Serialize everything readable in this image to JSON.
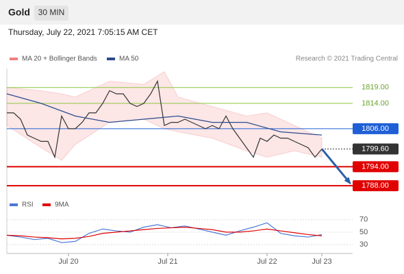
{
  "header": {
    "title": "Gold",
    "timeframe": "30 MIN",
    "datetime": "Thursday, July 22, 2021 7:05:15 AM CET",
    "credit": "Research © 2021 Trading Central"
  },
  "chart_data": [
    {
      "type": "line",
      "xlim": [
        0,
        50.5
      ],
      "ylim": [
        1785,
        1825
      ],
      "xticks": [
        {
          "value": 9,
          "label": "Jul 20"
        },
        {
          "value": 23.5,
          "label": "Jul 21"
        },
        {
          "value": 38,
          "label": "Jul 22"
        },
        {
          "value": 46,
          "label": "Jul 23"
        }
      ],
      "bands": {
        "name": "MA 20 + Bollinger Bands",
        "color": "#f08080",
        "x": [
          0,
          5,
          8,
          10,
          15,
          20,
          23,
          25,
          30,
          35,
          38,
          42,
          46
        ],
        "upper": [
          1819,
          1818,
          1817,
          1816,
          1821,
          1820,
          1824,
          1816,
          1813,
          1810,
          1811,
          1807,
          1803
        ],
        "lower": [
          1807,
          1800,
          1796,
          1801,
          1808,
          1809,
          1806,
          1805,
          1803,
          1799,
          1797,
          1799,
          1797
        ]
      },
      "series": [
        {
          "color": "#333333",
          "x": [
            0,
            1,
            2,
            3,
            4,
            5,
            6,
            7,
            8,
            9,
            10,
            11,
            12,
            13,
            14,
            15,
            16,
            17,
            18,
            19,
            20,
            21,
            22,
            23,
            24,
            25,
            26,
            27,
            28,
            29,
            30,
            31,
            32,
            33,
            34,
            35,
            36,
            37,
            38,
            39,
            40,
            41,
            42,
            43,
            44,
            45,
            46
          ],
          "values": [
            1811,
            1811,
            1809,
            1804,
            1803,
            1802,
            1802,
            1797,
            1810,
            1806,
            1806,
            1808,
            1811,
            1811,
            1814,
            1818,
            1817,
            1817,
            1814,
            1813,
            1814,
            1817,
            1821,
            1807,
            1808,
            1808,
            1809,
            1808,
            1807,
            1806,
            1807,
            1806,
            1810,
            1806,
            1803,
            1800,
            1797,
            1803,
            1802,
            1804,
            1803,
            1803,
            1802,
            1801,
            1800,
            1797,
            1799.6
          ]
        },
        {
          "name": "MA 50",
          "color": "#2b4a8b",
          "x": [
            0,
            5,
            10,
            15,
            20,
            25,
            30,
            35,
            40,
            46
          ],
          "values": [
            1817,
            1814,
            1810,
            1808,
            1809,
            1810,
            1808,
            1808,
            1805,
            1804
          ]
        }
      ],
      "levels": [
        {
          "value": 1819,
          "label": "1819.00",
          "color": "#8cc63f"
        },
        {
          "value": 1814,
          "label": "1814.00",
          "color": "#8cc63f"
        },
        {
          "value": 1806,
          "label": "1806.00",
          "color": "#1f5fd6"
        },
        {
          "value": 1799.6,
          "label": "1799.60",
          "color": "#333333"
        },
        {
          "value": 1794,
          "label": "1794.00",
          "color": "#e00000"
        },
        {
          "value": 1788,
          "label": "1788.00",
          "color": "#e00000"
        }
      ]
    },
    {
      "type": "line",
      "xlim": [
        0,
        50.5
      ],
      "ylim": [
        21,
        82
      ],
      "yticks": [
        30,
        50,
        70
      ],
      "series": [
        {
          "name": "RSI",
          "color": "#4a78d8",
          "x": [
            0,
            2,
            4,
            6,
            8,
            10,
            12,
            14,
            16,
            18,
            20,
            22,
            24,
            26,
            28,
            30,
            32,
            34,
            36,
            38,
            40,
            42,
            44,
            46
          ],
          "values": [
            45,
            42,
            38,
            40,
            33,
            35,
            48,
            55,
            52,
            50,
            58,
            62,
            57,
            60,
            55,
            50,
            45,
            52,
            58,
            65,
            48,
            44,
            42,
            46
          ]
        },
        {
          "name": "9MA",
          "color": "#e00000",
          "x": [
            0,
            2,
            4,
            6,
            8,
            10,
            12,
            14,
            16,
            18,
            20,
            22,
            24,
            26,
            28,
            30,
            32,
            34,
            36,
            38,
            40,
            42,
            44,
            46
          ],
          "values": [
            45,
            44,
            42,
            41,
            39,
            40,
            43,
            48,
            50,
            52,
            54,
            56,
            57,
            58,
            56,
            54,
            50,
            50,
            52,
            55,
            52,
            49,
            46,
            44
          ]
        }
      ]
    }
  ]
}
